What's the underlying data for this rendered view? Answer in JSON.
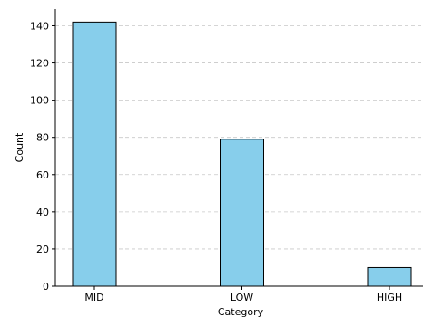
{
  "chart_data": {
    "type": "bar",
    "title": "",
    "xlabel": "Category",
    "ylabel": "Count",
    "categories": [
      "MID",
      "LOW",
      "HIGH"
    ],
    "values": [
      142,
      79,
      10
    ],
    "ylim": [
      0,
      149
    ],
    "yticks": [
      0,
      20,
      40,
      60,
      80,
      100,
      120,
      140
    ],
    "grid": "y-dashed",
    "legend": "none",
    "colors": {
      "bar_fill": "#87CEEB",
      "bar_edge": "#000000",
      "grid": "#c8c8c8"
    }
  }
}
